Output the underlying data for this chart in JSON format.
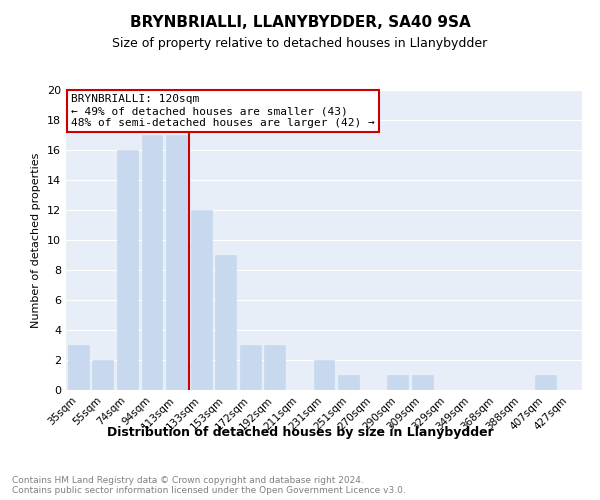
{
  "title": "BRYNBRIALLI, LLANYBYDDER, SA40 9SA",
  "subtitle": "Size of property relative to detached houses in Llanybydder",
  "xlabel": "Distribution of detached houses by size in Llanybydder",
  "ylabel": "Number of detached properties",
  "footer_line1": "Contains HM Land Registry data © Crown copyright and database right 2024.",
  "footer_line2": "Contains public sector information licensed under the Open Government Licence v3.0.",
  "bar_labels": [
    "35sqm",
    "55sqm",
    "74sqm",
    "94sqm",
    "113sqm",
    "133sqm",
    "153sqm",
    "172sqm",
    "192sqm",
    "211sqm",
    "231sqm",
    "251sqm",
    "270sqm",
    "290sqm",
    "309sqm",
    "329sqm",
    "349sqm",
    "368sqm",
    "388sqm",
    "407sqm",
    "427sqm"
  ],
  "bar_values": [
    3,
    2,
    16,
    17,
    17,
    12,
    9,
    3,
    3,
    0,
    2,
    1,
    0,
    1,
    1,
    0,
    0,
    0,
    0,
    1,
    0
  ],
  "bar_color": "#c8d9ef",
  "property_line_bin": 4.5,
  "annotation_title": "BRYNBRIALLI: 120sqm",
  "annotation_line2": "← 49% of detached houses are smaller (43)",
  "annotation_line3": "48% of semi-detached houses are larger (42) →",
  "annotation_box_color": "#cc0000",
  "ylim": [
    0,
    20
  ],
  "yticks": [
    0,
    2,
    4,
    6,
    8,
    10,
    12,
    14,
    16,
    18,
    20
  ],
  "grid_color": "#ffffff",
  "bg_color": "#e8eef7",
  "title_fontsize": 11,
  "subtitle_fontsize": 9,
  "xlabel_fontsize": 9,
  "ylabel_fontsize": 8,
  "footer_fontsize": 6.5,
  "annotation_fontsize": 8
}
